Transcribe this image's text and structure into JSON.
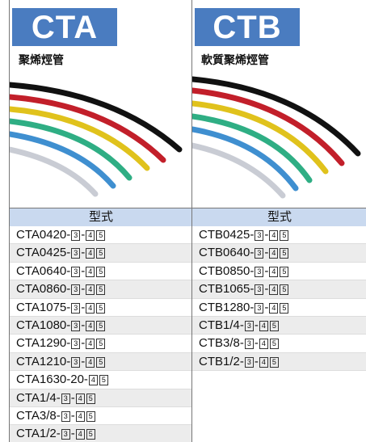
{
  "columns": [
    {
      "badge": "CTA",
      "subtitle": "聚烯烴管",
      "header": "型式",
      "rows": [
        [
          "CTA0420-",
          "3",
          "-",
          "4",
          "5"
        ],
        [
          "CTA0425-",
          "3",
          "-",
          "4",
          "5"
        ],
        [
          "CTA0640-",
          "3",
          "-",
          "4",
          "5"
        ],
        [
          "CTA0860-",
          "3",
          "-",
          "4",
          "5"
        ],
        [
          "CTA1075-",
          "3",
          "-",
          "4",
          "5"
        ],
        [
          "CTA1080-",
          "3",
          "-",
          "4",
          "5"
        ],
        [
          "CTA1290-",
          "3",
          "-",
          "4",
          "5"
        ],
        [
          "CTA1210-",
          "3",
          "-",
          "4",
          "5"
        ],
        [
          "CTA1630-20-",
          "4",
          "5"
        ],
        [
          "CTA1/4-",
          "3",
          "-",
          "4",
          "5"
        ],
        [
          "CTA3/8-",
          "3",
          "-",
          "4",
          "5"
        ],
        [
          "CTA1/2-",
          "3",
          "-",
          "4",
          "5"
        ]
      ]
    },
    {
      "badge": "CTB",
      "subtitle": "軟質聚烯烴管",
      "header": "型式",
      "rows": [
        [
          "CTB0425-",
          "3",
          "-",
          "4",
          "5"
        ],
        [
          "CTB0640-",
          "3",
          "-",
          "4",
          "5"
        ],
        [
          "CTB0850-",
          "3",
          "-",
          "4",
          "5"
        ],
        [
          "CTB1065-",
          "3",
          "-",
          "4",
          "5"
        ],
        [
          "CTB1280-",
          "3",
          "-",
          "4",
          "5"
        ],
        [
          "CTB1/4-",
          "3",
          "-",
          "4",
          "5"
        ],
        [
          "CTB3/8-",
          "3",
          "-",
          "4",
          "5"
        ],
        [
          "CTB1/2-",
          "3",
          "-",
          "4",
          "5"
        ]
      ]
    }
  ]
}
